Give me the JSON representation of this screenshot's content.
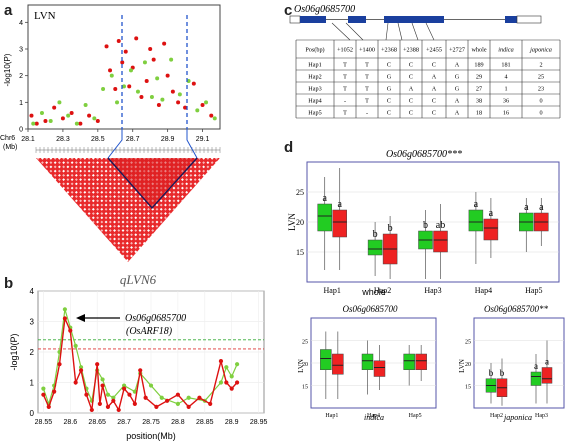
{
  "panel_labels": {
    "a": "a",
    "b": "b",
    "c": "c",
    "d": "d"
  },
  "panel_a": {
    "title": "LVN",
    "ylabel": "-log10(P)",
    "yticks": [
      "0",
      "1",
      "2",
      "3",
      "4"
    ],
    "chr_label": "Chr6",
    "chr_unit": "(Mb)",
    "xticks": [
      "28.1",
      "28.3",
      "28.5",
      "28.7",
      "28.9",
      "29.1"
    ],
    "colors": {
      "red": "#dd1111",
      "green": "#7fcf3f",
      "guide": "#2255cc"
    },
    "chart_data": {
      "type": "scatter",
      "x_unit": "Mb",
      "xlim": [
        28.1,
        29.2
      ],
      "ylim": [
        0,
        4.5
      ],
      "series": [
        {
          "color": "red",
          "points": [
            [
              28.12,
              0.5
            ],
            [
              28.15,
              0.2
            ],
            [
              28.2,
              0.3
            ],
            [
              28.25,
              0.8
            ],
            [
              28.3,
              0.4
            ],
            [
              28.35,
              0.6
            ],
            [
              28.4,
              0.2
            ],
            [
              28.45,
              0.5
            ],
            [
              28.5,
              0.3
            ],
            [
              28.55,
              3.1
            ],
            [
              28.57,
              2.2
            ],
            [
              28.6,
              1.5
            ],
            [
              28.62,
              3.3
            ],
            [
              28.64,
              2.5
            ],
            [
              28.66,
              2.9
            ],
            [
              28.68,
              1.6
            ],
            [
              28.7,
              2.3
            ],
            [
              28.72,
              3.4
            ],
            [
              28.75,
              1.2
            ],
            [
              28.78,
              1.8
            ],
            [
              28.8,
              3.0
            ],
            [
              28.82,
              2.6
            ],
            [
              28.85,
              0.9
            ],
            [
              28.88,
              3.2
            ],
            [
              28.9,
              2.0
            ],
            [
              28.93,
              1.4
            ],
            [
              28.96,
              1.0
            ],
            [
              29.0,
              0.8
            ],
            [
              29.05,
              1.7
            ],
            [
              29.1,
              0.9
            ],
            [
              29.15,
              0.5
            ]
          ]
        },
        {
          "color": "green",
          "points": [
            [
              28.13,
              0.2
            ],
            [
              28.18,
              0.6
            ],
            [
              28.23,
              0.3
            ],
            [
              28.28,
              1.0
            ],
            [
              28.33,
              0.5
            ],
            [
              28.38,
              0.2
            ],
            [
              28.43,
              0.9
            ],
            [
              28.48,
              0.4
            ],
            [
              28.53,
              1.5
            ],
            [
              28.58,
              2.0
            ],
            [
              28.61,
              1.0
            ],
            [
              28.65,
              1.6
            ],
            [
              28.69,
              2.2
            ],
            [
              28.73,
              1.4
            ],
            [
              28.77,
              2.5
            ],
            [
              28.81,
              1.2
            ],
            [
              28.84,
              1.9
            ],
            [
              28.87,
              1.1
            ],
            [
              28.92,
              2.6
            ],
            [
              28.97,
              1.3
            ],
            [
              29.02,
              1.8
            ],
            [
              29.07,
              0.7
            ],
            [
              29.12,
              1.0
            ],
            [
              29.17,
              0.4
            ]
          ]
        }
      ]
    }
  },
  "panel_b": {
    "title": "qLVN6",
    "ylabel": "-log10(P)",
    "xlabel": "position(Mb)",
    "yticks": [
      "0",
      "1",
      "2",
      "3",
      "4"
    ],
    "xticks": [
      "28.55",
      "28.6",
      "28.65",
      "28.7",
      "28.75",
      "28.8",
      "28.85",
      "28.9",
      "28.95"
    ],
    "annotation_gene": "Os06g0685700",
    "annotation_alias": "(OsARF18)",
    "colors": {
      "red": "#dd1111",
      "green": "#7fcf3f",
      "thr_green": "#33aa33",
      "thr_red": "#dd3333"
    },
    "chart_data": {
      "type": "line",
      "x_unit": "Mb",
      "xlim": [
        28.54,
        28.96
      ],
      "ylim": [
        0,
        4
      ],
      "thresholds": [
        2.4,
        2.1
      ],
      "series": [
        {
          "color": "green",
          "points": [
            [
              28.55,
              0.8
            ],
            [
              28.56,
              0.3
            ],
            [
              28.57,
              0.9
            ],
            [
              28.58,
              2.0
            ],
            [
              28.59,
              3.4
            ],
            [
              28.6,
              2.8
            ],
            [
              28.61,
              2.2
            ],
            [
              28.62,
              1.5
            ],
            [
              28.63,
              0.8
            ],
            [
              28.64,
              0.4
            ],
            [
              28.65,
              1.4
            ],
            [
              28.66,
              1.1
            ],
            [
              28.67,
              0.6
            ],
            [
              28.68,
              0.5
            ],
            [
              28.7,
              0.9
            ],
            [
              28.72,
              0.7
            ],
            [
              28.73,
              1.3
            ],
            [
              28.75,
              0.9
            ],
            [
              28.77,
              0.5
            ],
            [
              28.8,
              0.3
            ],
            [
              28.82,
              0.5
            ],
            [
              28.85,
              0.4
            ],
            [
              28.88,
              1.0
            ],
            [
              28.89,
              1.5
            ],
            [
              28.9,
              1.2
            ],
            [
              28.91,
              1.6
            ]
          ]
        },
        {
          "color": "red",
          "points": [
            [
              28.55,
              0.6
            ],
            [
              28.56,
              0.2
            ],
            [
              28.57,
              0.7
            ],
            [
              28.58,
              1.6
            ],
            [
              28.59,
              3.1
            ],
            [
              28.6,
              2.7
            ],
            [
              28.61,
              1.0
            ],
            [
              28.62,
              1.4
            ],
            [
              28.63,
              0.6
            ],
            [
              28.64,
              0.1
            ],
            [
              28.65,
              1.6
            ],
            [
              28.655,
              0.3
            ],
            [
              28.66,
              0.9
            ],
            [
              28.67,
              0.2
            ],
            [
              28.68,
              0.4
            ],
            [
              28.69,
              0.1
            ],
            [
              28.7,
              0.8
            ],
            [
              28.71,
              0.6
            ],
            [
              28.72,
              0.3
            ],
            [
              28.73,
              1.4
            ],
            [
              28.74,
              0.5
            ],
            [
              28.76,
              0.2
            ],
            [
              28.78,
              0.4
            ],
            [
              28.8,
              0.6
            ],
            [
              28.82,
              0.2
            ],
            [
              28.84,
              0.5
            ],
            [
              28.86,
              0.3
            ],
            [
              28.88,
              1.7
            ],
            [
              28.89,
              1.0
            ],
            [
              28.9,
              0.8
            ],
            [
              28.91,
              1.0
            ]
          ]
        }
      ]
    }
  },
  "panel_c": {
    "gene": "Os06g0685700",
    "colors": {
      "exon": "#1a3f9e"
    },
    "table_headers": [
      "Pos(bp)",
      "+1052",
      "+1400",
      "+2368",
      "+2388",
      "+2455",
      "+2727",
      "whole",
      "indica",
      "japonica"
    ],
    "table_rows": [
      [
        "Hap1",
        "T",
        "T",
        "C",
        "C",
        "C",
        "A",
        "189",
        "181",
        "2"
      ],
      [
        "Hap2",
        "T",
        "T",
        "G",
        "C",
        "A",
        "G",
        "29",
        "4",
        "25"
      ],
      [
        "Hap3",
        "T",
        "T",
        "G",
        "A",
        "A",
        "G",
        "27",
        "1",
        "23"
      ],
      [
        "Hap4",
        "-",
        "T",
        "C",
        "C",
        "C",
        "A",
        "38",
        "36",
        "0"
      ],
      [
        "Hap5",
        "T",
        "-",
        "C",
        "C",
        "C",
        "A",
        "18",
        "16",
        "0"
      ]
    ]
  },
  "panel_d": {
    "colors": {
      "green": "#22cc22",
      "red": "#ee2222",
      "frame": "#5555aa"
    },
    "main": {
      "title": "Os06g0685700***",
      "ylabel": "LVN",
      "xlabel": "whole",
      "yticks": [
        "15",
        "20",
        "25"
      ],
      "letters": [
        [
          "a",
          "a"
        ],
        [
          "b",
          "b"
        ],
        [
          "b",
          "ab"
        ],
        [
          "a",
          "a"
        ],
        [
          "a",
          "a"
        ]
      ],
      "chart_data": {
        "type": "box",
        "categories": [
          "Hap1",
          "Hap2",
          "Hap3",
          "Hap4",
          "Hap5"
        ],
        "ylim": [
          10,
          30
        ],
        "series": [
          {
            "color": "green",
            "boxes": [
              [
                12,
                18.5,
                21,
                23,
                27.5
              ],
              [
                11,
                14.5,
                15.5,
                17,
                20
              ],
              [
                10.5,
                15.5,
                17,
                18.5,
                22
              ],
              [
                13,
                18.5,
                20,
                22,
                25
              ],
              [
                15,
                18.5,
                20,
                21.5,
                24
              ]
            ]
          },
          {
            "color": "red",
            "boxes": [
              [
                12,
                17.5,
                20,
                22,
                29
              ],
              [
                10.5,
                13,
                15.5,
                18,
                21
              ],
              [
                10.5,
                15,
                17,
                18.5,
                23
              ],
              [
                14,
                17,
                19,
                20.5,
                24
              ],
              [
                16,
                18.5,
                20,
                21.5,
                24
              ]
            ]
          }
        ]
      }
    },
    "indica": {
      "title": "Os06g0685700",
      "ylabel": "LVN",
      "xlabel": "indica",
      "yticks": [
        "15",
        "20",
        "25"
      ],
      "chart_data": {
        "type": "box",
        "categories": [
          "Hap1",
          "Hap4",
          "Hap5"
        ],
        "ylim": [
          10,
          30
        ],
        "series": [
          {
            "color": "green",
            "boxes": [
              [
                12,
                18.5,
                21,
                23,
                27
              ],
              [
                13,
                18.5,
                20.5,
                22,
                25
              ],
              [
                15,
                18.5,
                20.5,
                22,
                24
              ]
            ]
          },
          {
            "color": "red",
            "boxes": [
              [
                12,
                17.5,
                19.5,
                22,
                27
              ],
              [
                14,
                17,
                19,
                20.5,
                24
              ],
              [
                16,
                18.5,
                20.5,
                22,
                24
              ]
            ]
          }
        ]
      }
    },
    "japonica": {
      "title": "Os06g0685700**",
      "ylabel": "LVN",
      "xlabel": "japonica",
      "yticks": [
        "15",
        "20",
        "25"
      ],
      "letters": [
        [
          "b",
          "b"
        ],
        [
          "a",
          "a"
        ]
      ],
      "chart_data": {
        "type": "box",
        "categories": [
          "Hap2",
          "Hap3"
        ],
        "ylim": [
          10,
          30
        ],
        "series": [
          {
            "color": "green",
            "boxes": [
              [
                11,
                13.5,
                15,
                16.5,
                20
              ],
              [
                11,
                15,
                17,
                18,
                22
              ]
            ]
          },
          {
            "color": "red",
            "boxes": [
              [
                10.5,
                12.5,
                14.5,
                16.5,
                21
              ],
              [
                11,
                15.5,
                16.5,
                19,
                25
              ]
            ]
          }
        ]
      }
    }
  }
}
